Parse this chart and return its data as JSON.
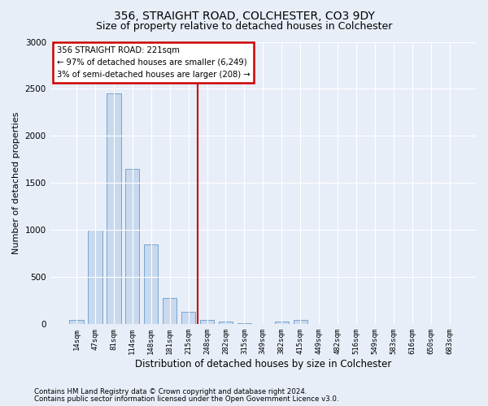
{
  "title1": "356, STRAIGHT ROAD, COLCHESTER, CO3 9DY",
  "title2": "Size of property relative to detached houses in Colchester",
  "xlabel": "Distribution of detached houses by size in Colchester",
  "ylabel": "Number of detached properties",
  "footnote1": "Contains HM Land Registry data © Crown copyright and database right 2024.",
  "footnote2": "Contains public sector information licensed under the Open Government Licence v3.0.",
  "annotation_title": "356 STRAIGHT ROAD: 221sqm",
  "annotation_line1": "← 97% of detached houses are smaller (6,249)",
  "annotation_line2": "3% of semi-detached houses are larger (208) →",
  "bar_labels": [
    "14sqm",
    "47sqm",
    "81sqm",
    "114sqm",
    "148sqm",
    "181sqm",
    "215sqm",
    "248sqm",
    "282sqm",
    "315sqm",
    "349sqm",
    "382sqm",
    "415sqm",
    "449sqm",
    "482sqm",
    "516sqm",
    "549sqm",
    "583sqm",
    "616sqm",
    "650sqm",
    "683sqm"
  ],
  "bar_values": [
    50,
    1000,
    2450,
    1650,
    850,
    280,
    130,
    50,
    30,
    10,
    0,
    30,
    50,
    0,
    0,
    0,
    0,
    0,
    0,
    0,
    0
  ],
  "bar_color": "#c8d9ee",
  "bar_edge_color": "#6699cc",
  "vline_x": 6.5,
  "vline_color": "#cc0000",
  "ylim": [
    0,
    3000
  ],
  "yticks": [
    0,
    500,
    1000,
    1500,
    2000,
    2500,
    3000
  ],
  "bg_color": "#e8eef8",
  "plot_bg_color": "#e8eef8",
  "grid_color": "#ffffff",
  "annotation_box_color": "#ffffff",
  "annotation_box_edge": "#cc0000",
  "title1_fontsize": 10,
  "title2_fontsize": 9,
  "xlabel_fontsize": 8.5,
  "ylabel_fontsize": 8
}
